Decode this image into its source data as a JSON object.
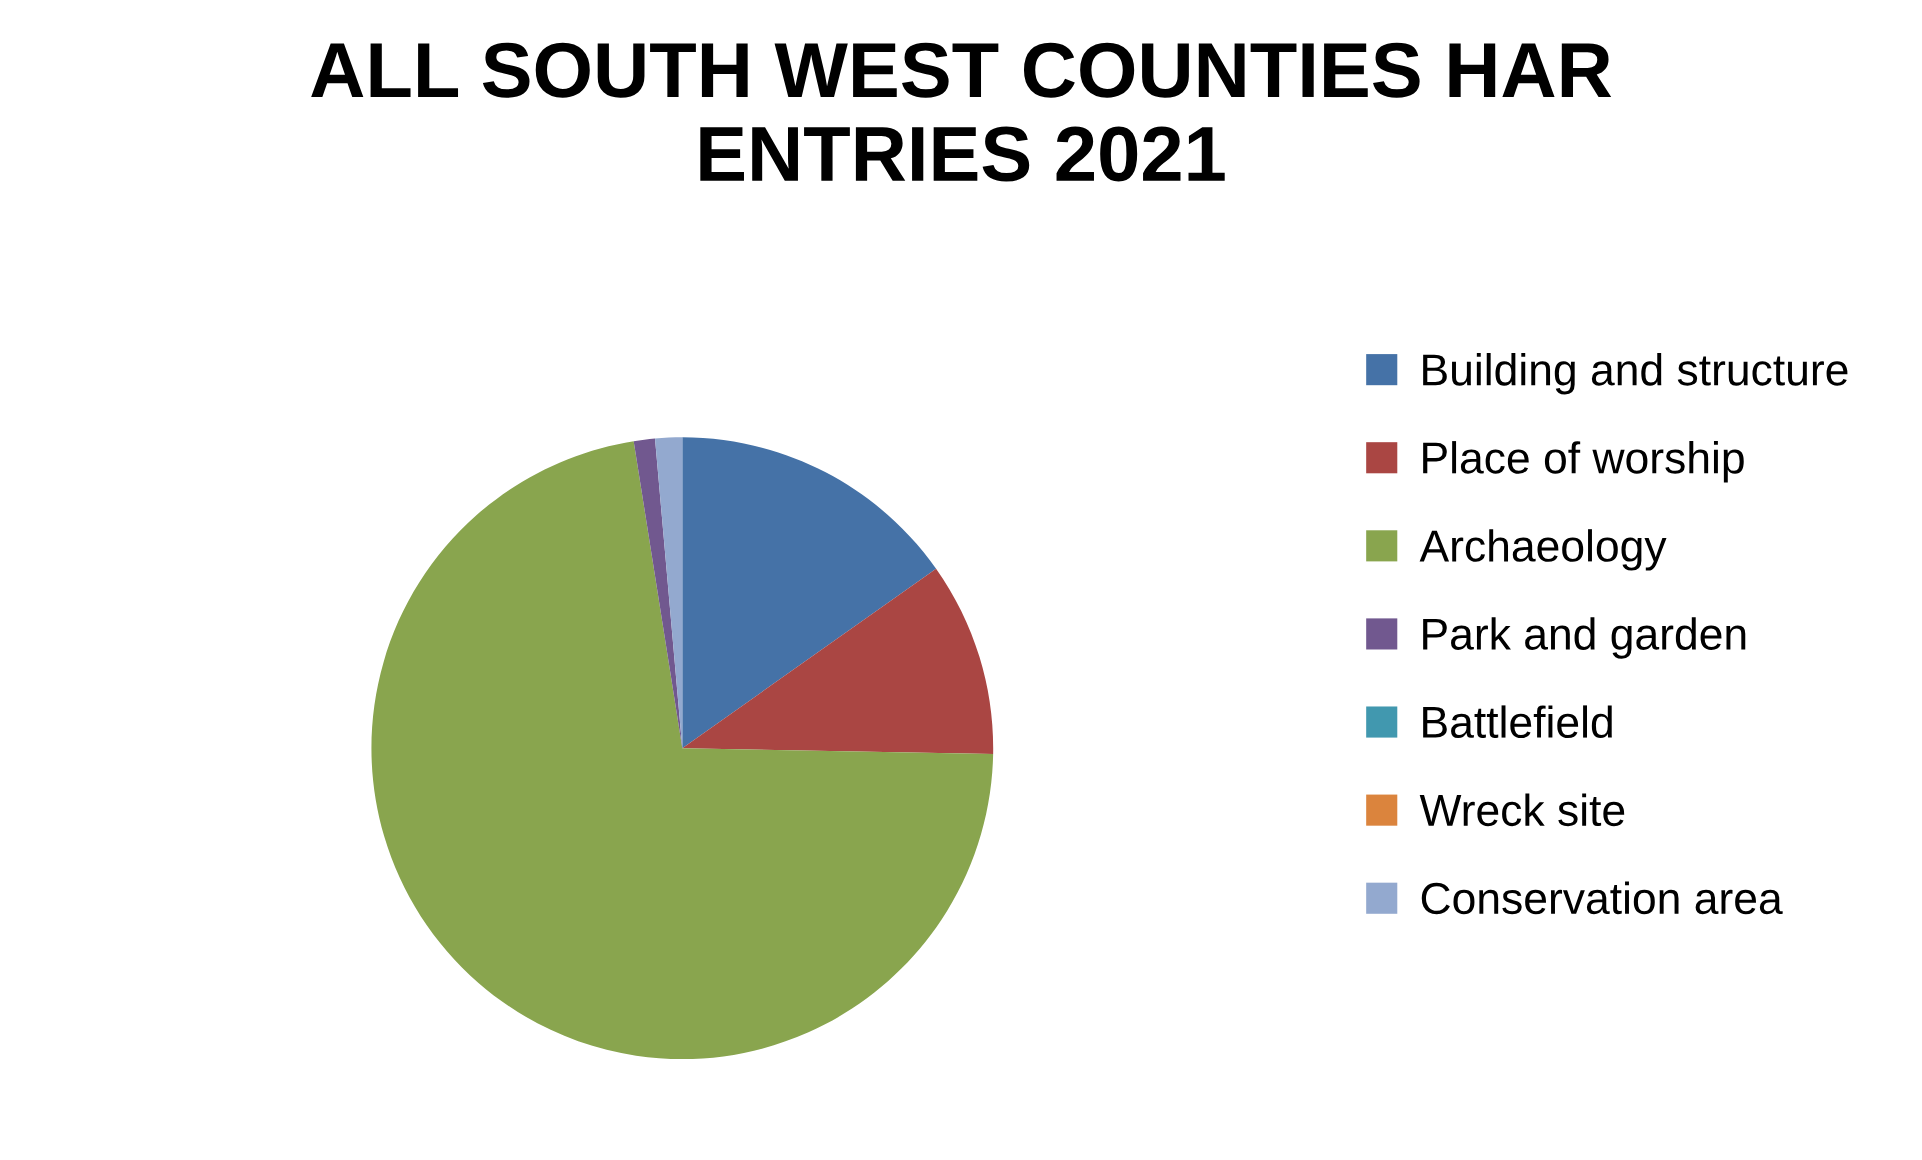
{
  "chart_data": {
    "type": "pie",
    "title": "ALL SOUTH WEST COUNTIES HAR\nENTRIES 2021",
    "categories": [
      "Building and structure",
      "Place of worship",
      "Archaeology",
      "Park and garden",
      "Battlefield",
      "Wreck site",
      "Conservation area"
    ],
    "values": [
      15.2,
      10.1,
      72.2,
      1.1,
      0,
      0,
      1.4
    ],
    "colors": [
      "#4572a7",
      "#aa4643",
      "#89a54e",
      "#71588f",
      "#4198af",
      "#db843d",
      "#93a9cf"
    ],
    "legend": "right"
  }
}
